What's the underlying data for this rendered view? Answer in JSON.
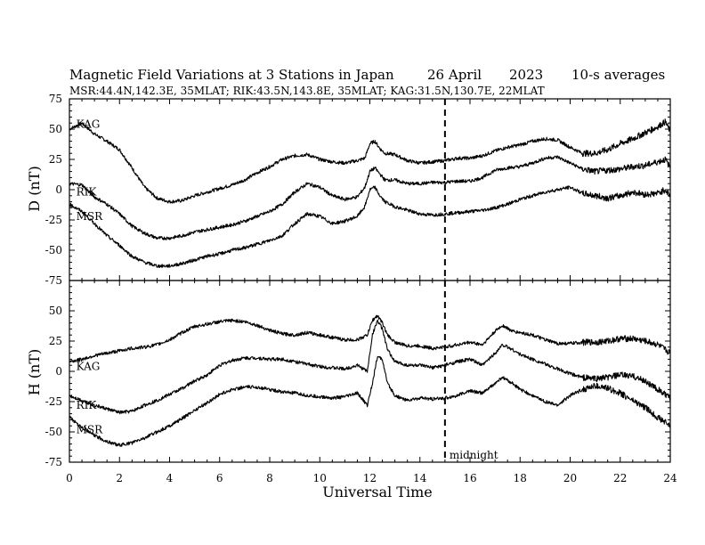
{
  "chart_data": {
    "type": "line",
    "title": "Magnetic Field Variations at 3 Stations in Japan",
    "date": "26  April",
    "year": "2023",
    "averaging": "10-s averages",
    "subtitle": "MSR:44.4N,142.3E, 35MLAT;  RIK:43.5N,143.8E, 35MLAT;  KAG:31.5N,130.7E, 22MLAT",
    "xlabel": "Universal Time",
    "xlim": [
      0,
      24
    ],
    "xticks": [
      0,
      2,
      4,
      6,
      8,
      10,
      12,
      14,
      16,
      18,
      20,
      22,
      24
    ],
    "x_tick_labels": [
      "0",
      "2",
      "4",
      "6",
      "8",
      "10",
      "12",
      "14",
      "16",
      "18",
      "20",
      "22",
      "24"
    ],
    "midnight": {
      "x": 15,
      "label": "midnight",
      "style": "dashed"
    },
    "grid": false,
    "panels": [
      {
        "id": "D",
        "ylabel": "D (nT)",
        "ylim": [
          -75,
          75
        ],
        "yticks": [
          -75,
          -50,
          -25,
          0,
          25,
          50,
          75
        ],
        "y_tick_labels": [
          "-75",
          "-50",
          "-25",
          "0",
          "25",
          "50",
          "75"
        ],
        "series": [
          {
            "name": "KAG",
            "label_x": 0.2,
            "label_y": 54,
            "x": [
              0,
              0.5,
              1,
              1.5,
              2,
              2.5,
              3,
              3.5,
              4,
              4.5,
              5,
              5.5,
              6,
              6.5,
              7,
              7.5,
              8,
              8.5,
              9,
              9.5,
              10,
              10.5,
              11,
              11.5,
              11.8,
              12,
              12.2,
              12.4,
              12.6,
              13,
              13.5,
              14,
              14.5,
              15,
              15.5,
              16,
              16.5,
              17,
              17.5,
              18,
              18.5,
              19,
              19.5,
              20,
              20.5,
              21,
              21.5,
              22,
              22.5,
              23,
              23.5,
              23.8,
              24
            ],
            "y": [
              50,
              55,
              46,
              40,
              33,
              18,
              2,
              -7,
              -10,
              -9,
              -5,
              -2,
              1,
              4,
              8,
              14,
              19,
              25,
              28,
              29,
              25,
              23,
              22,
              24,
              26,
              38,
              40,
              34,
              30,
              29,
              24,
              22,
              23,
              24,
              26,
              26,
              28,
              32,
              35,
              37,
              40,
              42,
              41,
              35,
              30,
              30,
              33,
              38,
              42,
              47,
              52,
              56,
              48
            ]
          },
          {
            "name": "RIK",
            "label_x": 0.2,
            "label_y": -2,
            "x": [
              0,
              0.5,
              1,
              1.5,
              2,
              2.5,
              3,
              3.5,
              4,
              4.5,
              5,
              5.5,
              6,
              6.5,
              7,
              7.5,
              8,
              8.5,
              9,
              9.5,
              10,
              10.5,
              11,
              11.5,
              11.8,
              12,
              12.2,
              12.4,
              12.6,
              13,
              13.5,
              14,
              14.5,
              15,
              15.5,
              16,
              16.5,
              17,
              17.5,
              18,
              18.5,
              19,
              19.5,
              20,
              20.5,
              21,
              21.5,
              22,
              22.5,
              23,
              23.5,
              23.8,
              24
            ],
            "y": [
              5,
              4,
              -6,
              -12,
              -20,
              -30,
              -36,
              -40,
              -40,
              -38,
              -35,
              -33,
              -31,
              -29,
              -26,
              -22,
              -18,
              -12,
              -2,
              5,
              2,
              -5,
              -8,
              -6,
              2,
              15,
              18,
              13,
              8,
              8,
              5,
              5,
              6,
              6,
              7,
              7,
              10,
              16,
              18,
              19,
              22,
              26,
              27,
              22,
              17,
              15,
              16,
              17,
              19,
              20,
              23,
              25,
              18
            ]
          },
          {
            "name": "MSR",
            "label_x": 0.2,
            "label_y": -22,
            "x": [
              0,
              0.5,
              1,
              1.5,
              2,
              2.5,
              3,
              3.5,
              4,
              4.5,
              5,
              5.5,
              6,
              6.5,
              7,
              7.5,
              8,
              8.5,
              9,
              9.5,
              10,
              10.5,
              11,
              11.5,
              11.8,
              12,
              12.2,
              12.4,
              12.6,
              13,
              13.5,
              14,
              14.5,
              15,
              15.5,
              16,
              16.5,
              17,
              17.5,
              18,
              18.5,
              19,
              19.5,
              20,
              20.5,
              21,
              21.5,
              22,
              22.5,
              23,
              23.5,
              23.8,
              24
            ],
            "y": [
              -12,
              -18,
              -28,
              -38,
              -46,
              -55,
              -60,
              -63,
              -63,
              -61,
              -58,
              -55,
              -53,
              -50,
              -48,
              -45,
              -42,
              -38,
              -28,
              -20,
              -22,
              -28,
              -26,
              -22,
              -14,
              0,
              2,
              -5,
              -10,
              -14,
              -17,
              -20,
              -21,
              -20,
              -19,
              -18,
              -17,
              -15,
              -12,
              -8,
              -5,
              -2,
              0,
              2,
              -3,
              -5,
              -7,
              -5,
              -2,
              -4,
              -3,
              0,
              -5
            ]
          }
        ]
      },
      {
        "id": "H",
        "ylabel": "H (nT)",
        "ylim": [
          -75,
          75
        ],
        "yticks": [
          -75,
          -50,
          -25,
          0,
          25,
          50,
          75
        ],
        "y_tick_labels": [
          "-75",
          "-50",
          "-25",
          "0",
          "25",
          "50",
          "75"
        ],
        "series": [
          {
            "name": "KAG",
            "label_x": 0.2,
            "label_y": 4,
            "x": [
              0,
              0.5,
              1,
              1.5,
              2,
              2.5,
              3,
              3.5,
              4,
              4.5,
              5,
              5.5,
              6,
              6.5,
              7,
              7.5,
              8,
              8.5,
              9,
              9.5,
              10,
              10.5,
              11,
              11.5,
              11.9,
              12.1,
              12.3,
              12.5,
              12.7,
              13,
              13.5,
              14,
              14.5,
              15,
              15.5,
              16,
              16.5,
              17,
              17.3,
              17.7,
              18,
              18.5,
              19,
              19.5,
              20,
              20.5,
              21,
              21.5,
              22,
              22.5,
              23,
              23.5,
              24
            ],
            "y": [
              8,
              10,
              13,
              15,
              17,
              19,
              20,
              22,
              26,
              32,
              37,
              39,
              41,
              42,
              41,
              38,
              34,
              31,
              30,
              32,
              30,
              28,
              26,
              26,
              30,
              42,
              46,
              40,
              30,
              24,
              21,
              21,
              19,
              20,
              22,
              24,
              22,
              33,
              38,
              33,
              32,
              30,
              26,
              23,
              23,
              24,
              24,
              25,
              27,
              27,
              25,
              22,
              15
            ]
          },
          {
            "name": "RIK",
            "label_x": 0.2,
            "label_y": -28,
            "x": [
              0,
              0.5,
              1,
              1.5,
              2,
              2.5,
              3,
              3.5,
              4,
              4.5,
              5,
              5.5,
              6,
              6.5,
              7,
              7.5,
              8,
              8.5,
              9,
              9.5,
              10,
              10.5,
              11,
              11.5,
              11.9,
              12.1,
              12.3,
              12.5,
              12.7,
              13,
              13.5,
              14,
              14.5,
              15,
              15.5,
              16,
              16.5,
              17,
              17.3,
              17.7,
              18,
              18.5,
              19,
              19.5,
              20,
              20.5,
              21,
              21.5,
              22,
              22.5,
              23,
              23.5,
              24
            ],
            "y": [
              -20,
              -24,
              -28,
              -31,
              -34,
              -33,
              -28,
              -24,
              -19,
              -14,
              -8,
              -3,
              5,
              9,
              11,
              11,
              10,
              10,
              8,
              6,
              4,
              3,
              2,
              5,
              0,
              30,
              42,
              35,
              18,
              8,
              5,
              5,
              3,
              5,
              8,
              10,
              5,
              15,
              22,
              18,
              14,
              10,
              6,
              2,
              -2,
              -5,
              -6,
              -5,
              -3,
              -4,
              -8,
              -15,
              -22
            ]
          },
          {
            "name": "MSR",
            "label_x": 0.2,
            "label_y": -48,
            "x": [
              0,
              0.5,
              1,
              1.5,
              2,
              2.5,
              3,
              3.5,
              4,
              4.5,
              5,
              5.5,
              6,
              6.5,
              7,
              7.5,
              8,
              8.5,
              9,
              9.5,
              10,
              10.5,
              11,
              11.5,
              11.9,
              12.1,
              12.3,
              12.5,
              12.7,
              13,
              13.5,
              14,
              14.5,
              15,
              15.5,
              16,
              16.5,
              17,
              17.3,
              17.7,
              18,
              18.5,
              19,
              19.5,
              20,
              20.5,
              21,
              21.5,
              22,
              22.5,
              23,
              23.5,
              24
            ],
            "y": [
              -38,
              -46,
              -53,
              -58,
              -61,
              -59,
              -55,
              -50,
              -45,
              -39,
              -32,
              -26,
              -19,
              -15,
              -13,
              -13,
              -15,
              -17,
              -18,
              -20,
              -21,
              -22,
              -21,
              -18,
              -28,
              -10,
              12,
              10,
              -10,
              -20,
              -24,
              -22,
              -23,
              -22,
              -20,
              -16,
              -18,
              -10,
              -5,
              -10,
              -15,
              -20,
              -25,
              -28,
              -20,
              -15,
              -12,
              -14,
              -18,
              -24,
              -30,
              -38,
              -45
            ]
          }
        ]
      }
    ]
  }
}
